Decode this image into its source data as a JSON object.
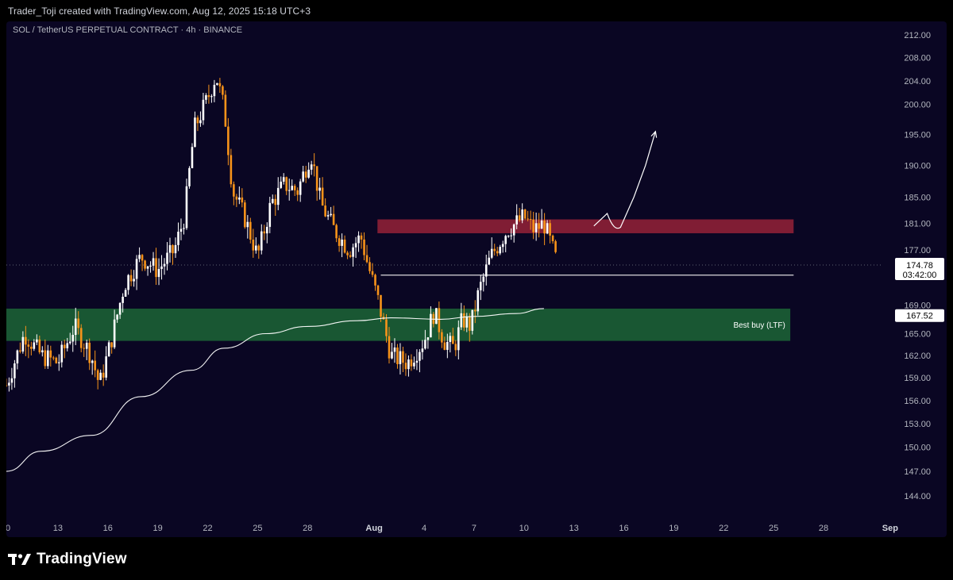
{
  "header": {
    "attribution": "Trader_Toji created with TradingView.com, Aug 12, 2025 15:18 UTC+3"
  },
  "symbol": {
    "title": "SOL / TetherUS PERPETUAL CONTRACT · 4h · BINANCE"
  },
  "footer": {
    "brand": "TradingView",
    "logo_icon": "tradingview-logo-icon"
  },
  "colors": {
    "background": "#0a0623",
    "candle_up": "#ffffff",
    "candle_down": "#f7931a",
    "resistance_zone": "#c0293e",
    "support_zone": "#1f7a3a",
    "moving_average": "#ffffff",
    "last_price_label": "#ffffff"
  },
  "chart_data": {
    "type": "candlestick",
    "title": "SOL / TetherUS PERPETUAL CONTRACT · 4h · BINANCE",
    "ylim": [
      142,
      214
    ],
    "y_ticks": [
      "212.00",
      "208.00",
      "204.00",
      "200.00",
      "195.00",
      "190.00",
      "185.00",
      "181.00",
      "177.00",
      "169.00",
      "165.00",
      "162.00",
      "159.00",
      "156.00",
      "153.00",
      "150.00",
      "147.00",
      "144.00"
    ],
    "x_ticks": [
      {
        "label": "0",
        "day": 10
      },
      {
        "label": "13",
        "day": 13
      },
      {
        "label": "16",
        "day": 16
      },
      {
        "label": "19",
        "day": 19
      },
      {
        "label": "22",
        "day": 22
      },
      {
        "label": "25",
        "day": 25
      },
      {
        "label": "28",
        "day": 28
      },
      {
        "label": "Aug",
        "day": 32,
        "bold": true
      },
      {
        "label": "4",
        "day": 35
      },
      {
        "label": "7",
        "day": 38
      },
      {
        "label": "10",
        "day": 41
      },
      {
        "label": "13",
        "day": 44
      },
      {
        "label": "16",
        "day": 47
      },
      {
        "label": "19",
        "day": 50
      },
      {
        "label": "22",
        "day": 53
      },
      {
        "label": "25",
        "day": 56
      },
      {
        "label": "28",
        "day": 59
      },
      {
        "label": "Sep",
        "day": 63,
        "bold": true
      }
    ],
    "price_path": [
      [
        9.9,
        158
      ],
      [
        11.0,
        165
      ],
      [
        12.0,
        162
      ],
      [
        13.0,
        161
      ],
      [
        14.0,
        166
      ],
      [
        15.0,
        162
      ],
      [
        15.5,
        158
      ],
      [
        16.2,
        164
      ],
      [
        17.0,
        172
      ],
      [
        18.0,
        176
      ],
      [
        19.0,
        174
      ],
      [
        20.0,
        177
      ],
      [
        20.6,
        182
      ],
      [
        21.2,
        196
      ],
      [
        22.0,
        201
      ],
      [
        22.5,
        205
      ],
      [
        23.0,
        199
      ],
      [
        23.5,
        186
      ],
      [
        24.2,
        182
      ],
      [
        25.0,
        176
      ],
      [
        25.8,
        184
      ],
      [
        26.6,
        187
      ],
      [
        27.4,
        186
      ],
      [
        28.2,
        192
      ],
      [
        28.8,
        184
      ],
      [
        29.6,
        180
      ],
      [
        30.5,
        177
      ],
      [
        31.2,
        179
      ],
      [
        31.6,
        175
      ],
      [
        32.2,
        170
      ],
      [
        33.0,
        162
      ],
      [
        34.0,
        161
      ],
      [
        35.0,
        164
      ],
      [
        35.6,
        168
      ],
      [
        36.2,
        164
      ],
      [
        36.8,
        163
      ],
      [
        37.3,
        167
      ],
      [
        37.8,
        166
      ],
      [
        38.3,
        171
      ],
      [
        39.0,
        176
      ],
      [
        40.0,
        180
      ],
      [
        41.0,
        182
      ],
      [
        41.6,
        180
      ],
      [
        42.2,
        181
      ],
      [
        43.0,
        175
      ]
    ],
    "moving_average": [
      [
        9.9,
        147
      ],
      [
        12,
        149.5
      ],
      [
        15,
        151.5
      ],
      [
        18,
        156.5
      ],
      [
        21,
        160
      ],
      [
        23,
        163
      ],
      [
        25.5,
        165
      ],
      [
        28,
        166
      ],
      [
        31,
        166.8
      ],
      [
        33,
        167.2
      ],
      [
        36,
        167
      ],
      [
        38,
        167.4
      ],
      [
        40.5,
        167.8
      ],
      [
        42.2,
        168.5
      ]
    ],
    "resistance_zone": [
      179.5,
      181.6
    ],
    "support_zone": [
      164.0,
      168.5
    ],
    "support_label": "Best buy (LTF)",
    "horizontal_line": 173.3,
    "last_price": "174.78",
    "countdown": "03:42:00",
    "ma_value": "167.52",
    "projection_path": [
      [
        45.2,
        180.6
      ],
      [
        46.0,
        182.5
      ],
      [
        46.8,
        180.4
      ],
      [
        47.6,
        185
      ],
      [
        48.3,
        190
      ],
      [
        48.9,
        195.5
      ]
    ]
  }
}
